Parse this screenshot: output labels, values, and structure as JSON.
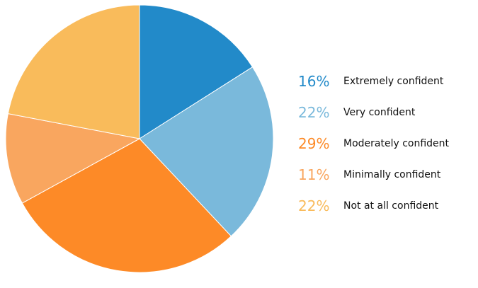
{
  "chart_data": {
    "type": "pie",
    "slices": [
      {
        "label": "Extremely confident",
        "value": 16,
        "value_label": "16%",
        "color": "#228ac9"
      },
      {
        "label": "Very confident",
        "value": 22,
        "value_label": "22%",
        "color": "#7ab9db"
      },
      {
        "label": "Moderately confident",
        "value": 29,
        "value_label": "29%",
        "color": "#fd8a27"
      },
      {
        "label": "Minimally confident",
        "value": 11,
        "value_label": "11%",
        "color": "#f9a65f"
      },
      {
        "label": "Not at all confident",
        "value": 22,
        "value_label": "22%",
        "color": "#f9bb5b"
      }
    ],
    "legend_position": "right"
  }
}
